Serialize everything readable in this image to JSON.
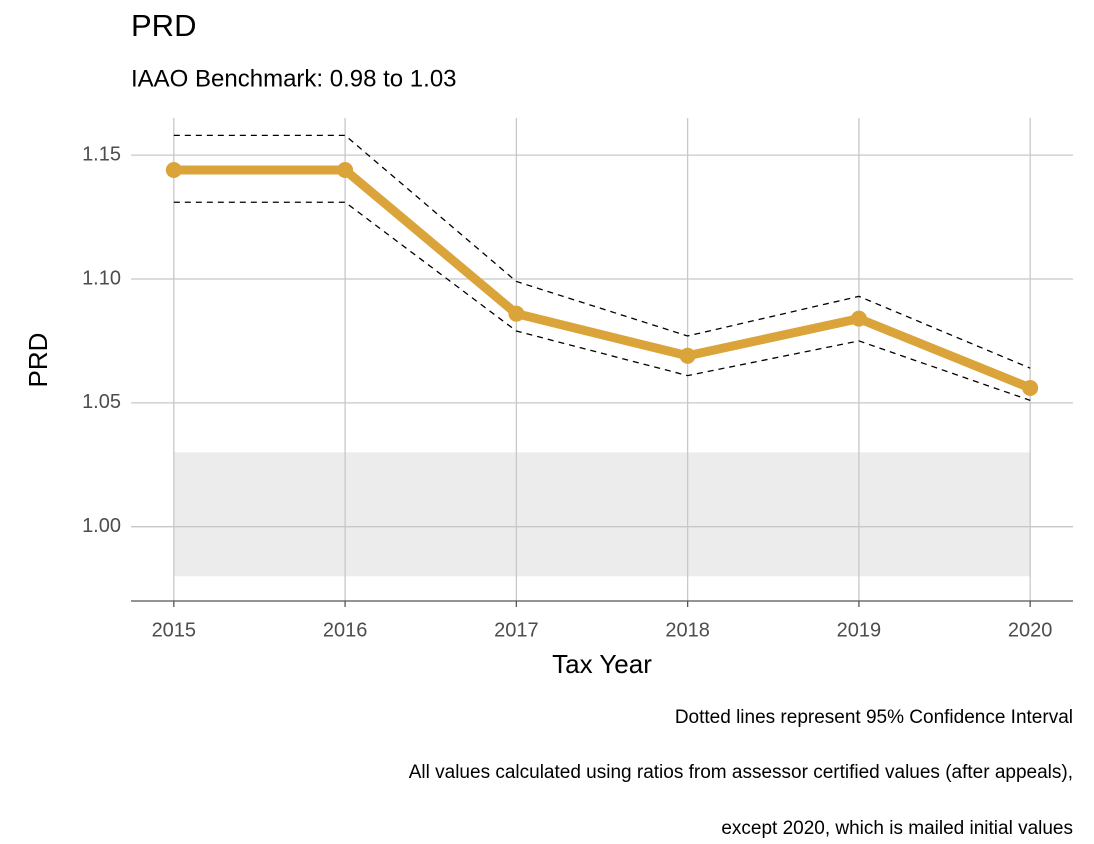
{
  "chart_data": {
    "type": "line",
    "title": "PRD",
    "subtitle": "IAAO Benchmark: 0.98 to 1.03",
    "x_label": "Tax Year",
    "y_label": "PRD",
    "notes": [
      "Dotted lines represent 95% Confidence Interval",
      "All values calculated using ratios from assessor certified values (after appeals),",
      "except 2020, which is mailed initial values"
    ],
    "x": [
      2015,
      2016,
      2017,
      2018,
      2019,
      2020
    ],
    "values": [
      1.144,
      1.144,
      1.086,
      1.069,
      1.084,
      1.056
    ],
    "ci_upper": [
      1.158,
      1.158,
      1.099,
      1.077,
      1.093,
      1.064
    ],
    "ci_lower": [
      1.131,
      1.131,
      1.079,
      1.061,
      1.075,
      1.051
    ],
    "color": "#daa43a",
    "ci_color": "#000000",
    "band": [
      0.98,
      1.03
    ],
    "band_color": "#ececec",
    "xlim": [
      2014.75,
      2020.25
    ],
    "xticks": [
      2015,
      2016,
      2017,
      2018,
      2019,
      2020
    ],
    "ylim": [
      0.97,
      1.165
    ],
    "yticks": [
      {
        "value": 1.0,
        "label": "1.00"
      },
      1.05,
      {
        "value": 1.1,
        "label": "1.10"
      },
      1.15
    ],
    "grid": true
  }
}
